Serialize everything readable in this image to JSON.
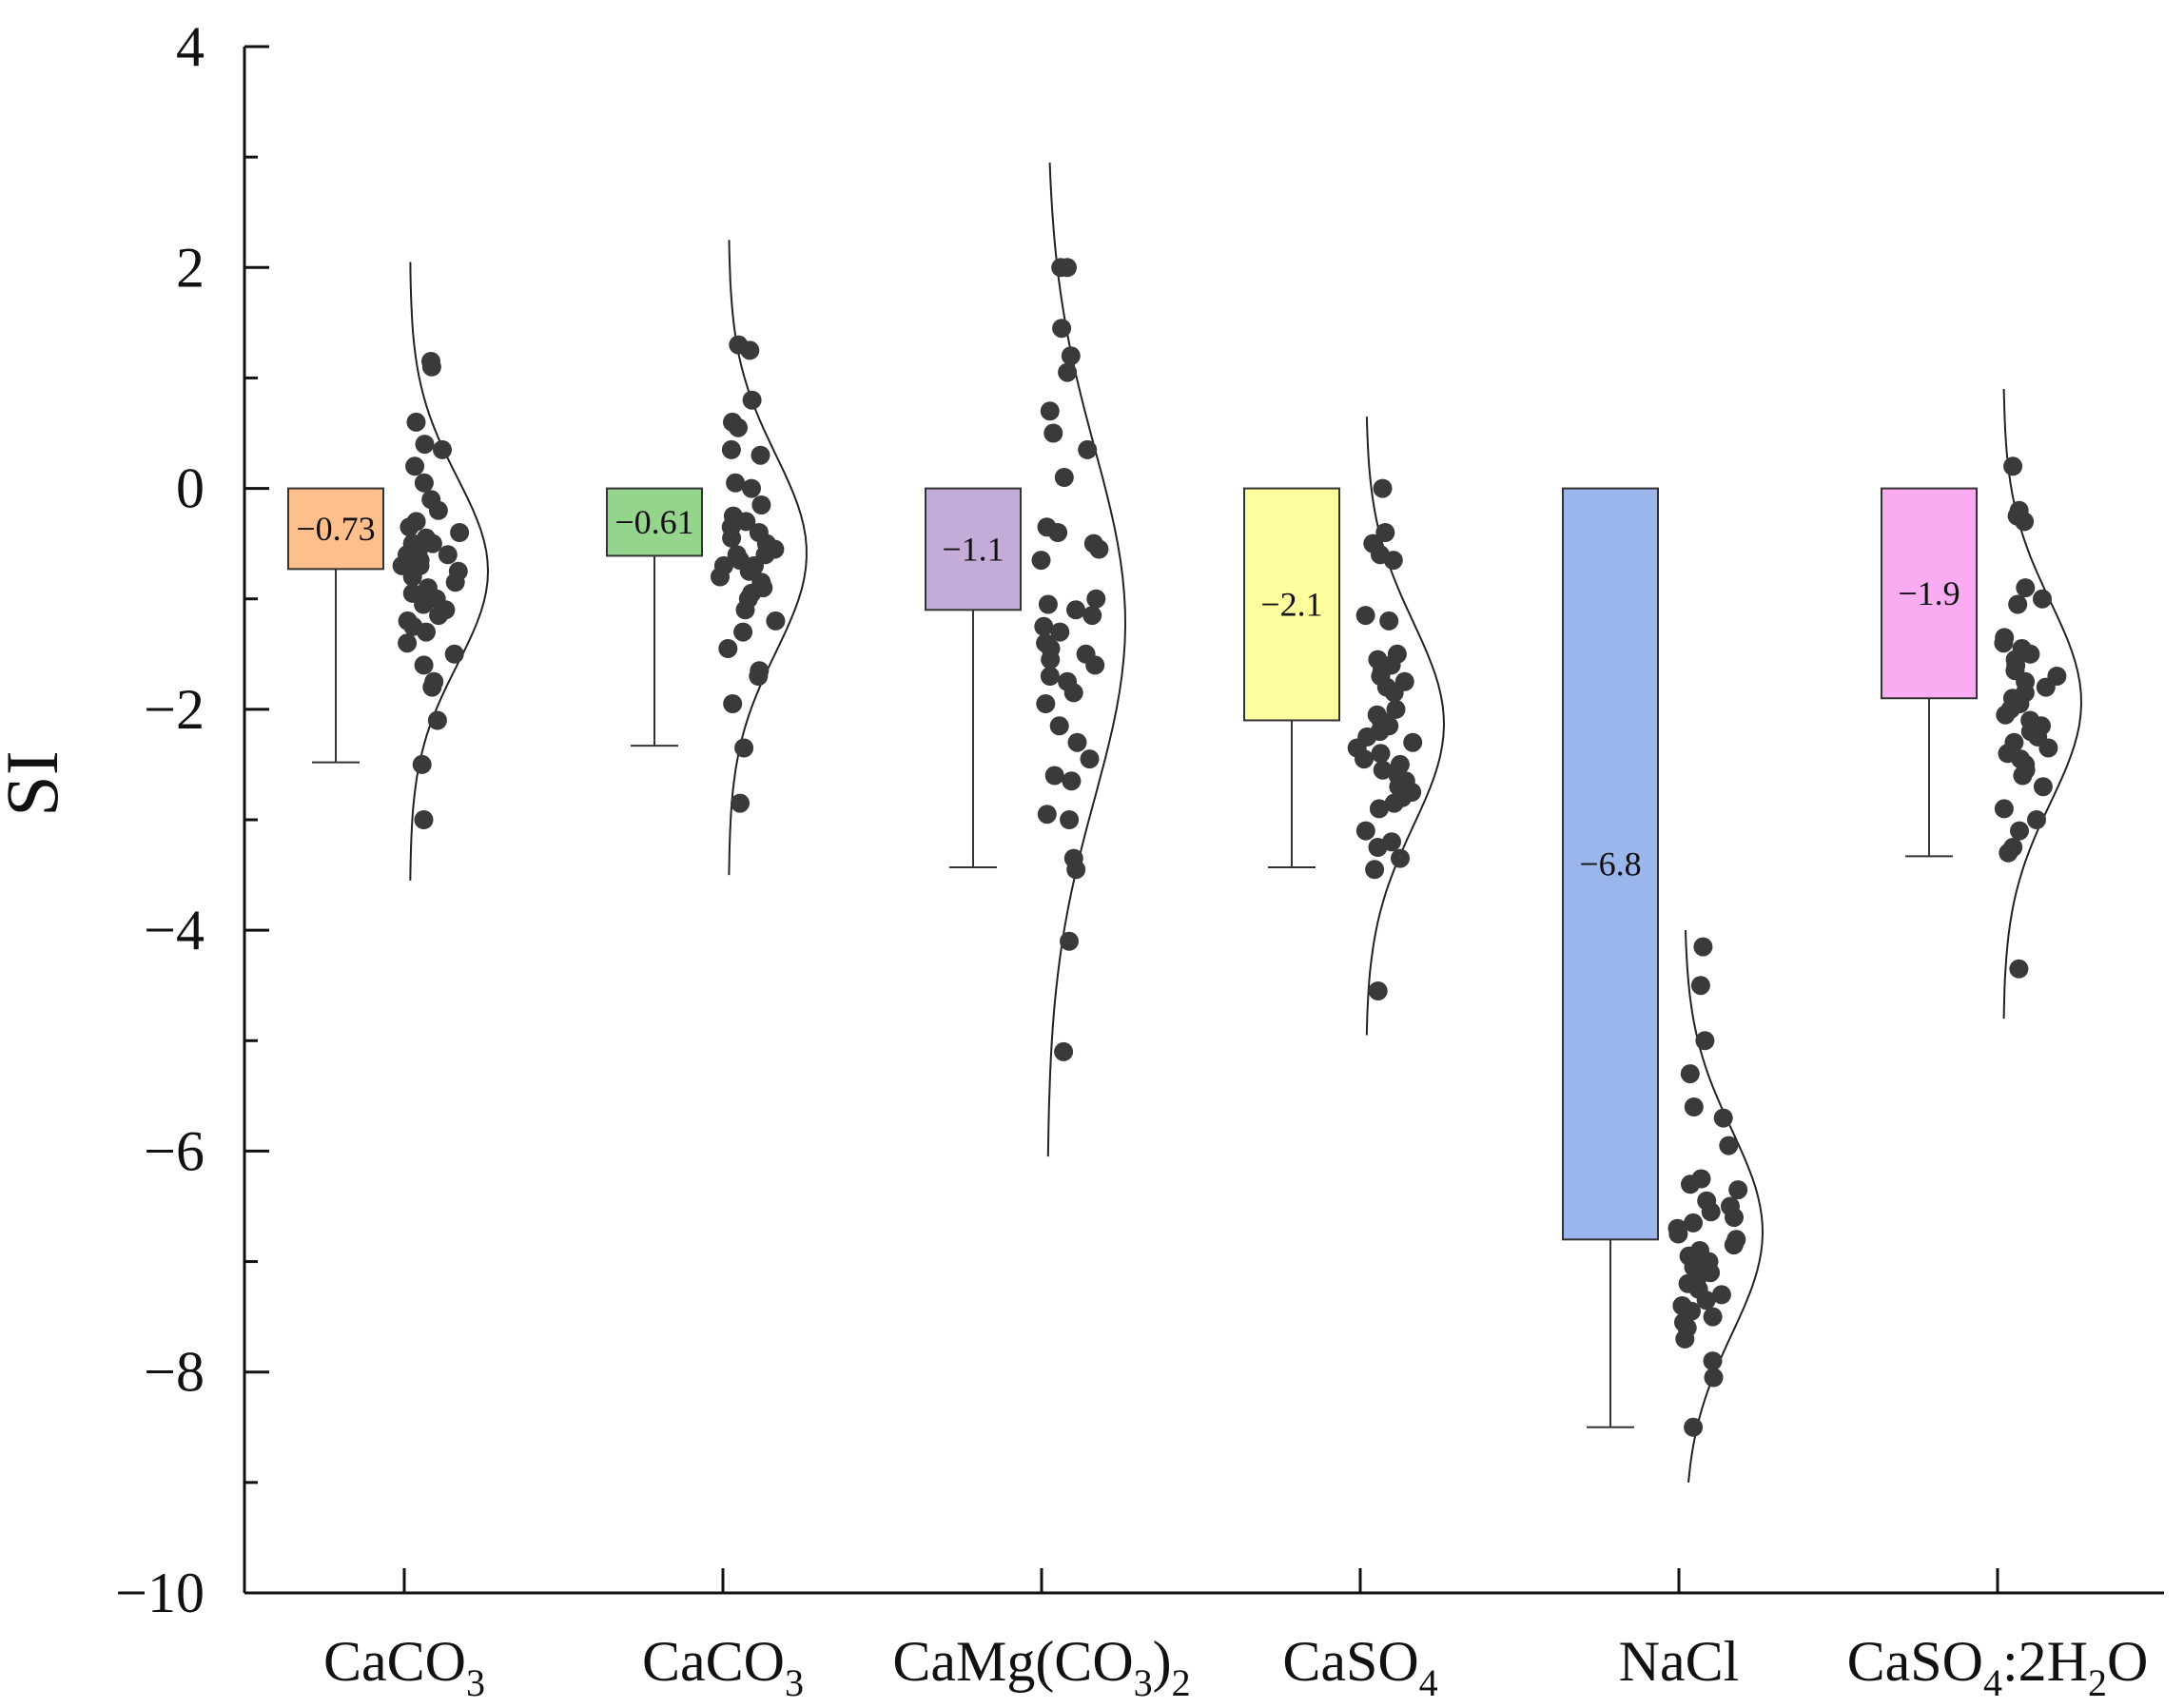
{
  "chart_data": {
    "type": "bar",
    "title": "",
    "xlabel": "",
    "ylabel": "SI",
    "ylim": [
      -10,
      4
    ],
    "yticks": [
      4,
      2,
      0,
      -2,
      -4,
      -6,
      -8,
      -10
    ],
    "ytick_labels": [
      "4",
      "2",
      "0",
      "−2",
      "−4",
      "−6",
      "−8",
      "−10"
    ],
    "grid": false,
    "legend": "none",
    "categories": [
      {
        "main": "CaCO",
        "sub": "3",
        "rest": "",
        "sub2": "",
        "tail": ""
      },
      {
        "main": "CaCO",
        "sub": "3",
        "rest": "",
        "sub2": "",
        "tail": ""
      },
      {
        "main": "CaMg(CO",
        "sub": "3",
        "rest": ")",
        "sub2": "2",
        "tail": ""
      },
      {
        "main": "CaSO",
        "sub": "4",
        "rest": "",
        "sub2": "",
        "tail": ""
      },
      {
        "main": "NaCl",
        "sub": "",
        "rest": "",
        "sub2": "",
        "tail": ""
      },
      {
        "main": "CaSO",
        "sub": "4",
        "rest": ":2H",
        "sub2": "2",
        "tail": "O"
      }
    ],
    "series": [
      {
        "name": "CaCO3",
        "mean": -0.73,
        "label": "−0.73",
        "whisker_low": -2.48,
        "color": "#fdc08c",
        "points": [
          1.15,
          1.1,
          0.6,
          0.4,
          0.35,
          0.2,
          0.05,
          -0.1,
          -0.2,
          -0.3,
          -0.35,
          -0.4,
          -0.45,
          -0.5,
          -0.5,
          -0.55,
          -0.6,
          -0.6,
          -0.65,
          -0.7,
          -0.7,
          -0.75,
          -0.8,
          -0.85,
          -0.9,
          -0.95,
          -1.0,
          -1.05,
          -1.1,
          -1.15,
          -1.2,
          -1.25,
          -1.3,
          -1.4,
          -1.5,
          -1.6,
          -1.75,
          -1.8,
          -2.1,
          -2.5,
          -3.0
        ],
        "curve_range": [
          -3.55,
          2.05
        ]
      },
      {
        "name": "CaCO3",
        "mean": -0.61,
        "label": "−0.61",
        "whisker_low": -2.33,
        "color": "#94d48c",
        "points": [
          1.3,
          1.25,
          0.8,
          0.6,
          0.55,
          0.35,
          0.3,
          0.05,
          0.0,
          -0.15,
          -0.25,
          -0.3,
          -0.35,
          -0.4,
          -0.45,
          -0.5,
          -0.55,
          -0.6,
          -0.6,
          -0.65,
          -0.7,
          -0.7,
          -0.75,
          -0.8,
          -0.85,
          -0.9,
          -0.95,
          -1.0,
          -1.1,
          -1.2,
          -1.3,
          -1.45,
          -1.65,
          -1.7,
          -1.95,
          -2.35,
          -2.85
        ],
        "curve_range": [
          -3.5,
          2.25
        ]
      },
      {
        "name": "CaMg(CO3)2",
        "mean": -1.1,
        "label": "−1.1",
        "whisker_low": -3.43,
        "color": "#c4acd8",
        "points": [
          2.0,
          2.0,
          1.45,
          1.2,
          1.05,
          0.7,
          0.5,
          0.35,
          0.1,
          -0.35,
          -0.4,
          -0.5,
          -0.55,
          -0.65,
          -1.0,
          -1.05,
          -1.1,
          -1.15,
          -1.25,
          -1.3,
          -1.4,
          -1.45,
          -1.5,
          -1.55,
          -1.6,
          -1.7,
          -1.75,
          -1.85,
          -1.95,
          -2.15,
          -2.3,
          -2.45,
          -2.6,
          -2.65,
          -2.95,
          -3.0,
          -3.35,
          -3.45,
          -4.1,
          -5.1
        ],
        "curve_range": [
          -6.05,
          2.95
        ]
      },
      {
        "name": "CaSO4",
        "mean": -2.1,
        "label": "−2.1",
        "whisker_low": -3.43,
        "color": "#fdfd9e",
        "points": [
          0.0,
          -0.4,
          -0.5,
          -0.6,
          -0.65,
          -1.15,
          -1.2,
          -1.5,
          -1.55,
          -1.6,
          -1.65,
          -1.7,
          -1.75,
          -1.8,
          -1.85,
          -2.0,
          -2.05,
          -2.1,
          -2.15,
          -2.2,
          -2.25,
          -2.3,
          -2.35,
          -2.4,
          -2.45,
          -2.5,
          -2.55,
          -2.6,
          -2.65,
          -2.7,
          -2.75,
          -2.8,
          -2.85,
          -2.9,
          -3.1,
          -3.2,
          -3.25,
          -3.35,
          -3.45,
          -4.55
        ],
        "curve_range": [
          -4.95,
          0.65
        ]
      },
      {
        "name": "NaCl",
        "mean": -6.8,
        "label": "−6.8",
        "whisker_low": -8.5,
        "color": "#9ab6ec",
        "points": [
          -4.15,
          -4.5,
          -5.0,
          -5.3,
          -5.6,
          -5.7,
          -5.95,
          -6.25,
          -6.3,
          -6.35,
          -6.45,
          -6.5,
          -6.55,
          -6.6,
          -6.65,
          -6.7,
          -6.75,
          -6.8,
          -6.85,
          -6.9,
          -6.95,
          -7.0,
          -7.05,
          -7.1,
          -7.15,
          -7.2,
          -7.25,
          -7.3,
          -7.35,
          -7.4,
          -7.45,
          -7.5,
          -7.55,
          -7.6,
          -7.7,
          -7.9,
          -8.05,
          -8.5
        ],
        "curve_range": [
          -9.0,
          -4.0
        ]
      },
      {
        "name": "CaSO4:2H2O",
        "mean": -1.9,
        "label": "−1.9",
        "whisker_low": -3.33,
        "color": "#f9acf1",
        "points": [
          0.2,
          -0.2,
          -0.25,
          -0.3,
          -0.9,
          -1.0,
          -1.05,
          -1.35,
          -1.4,
          -1.45,
          -1.5,
          -1.55,
          -1.6,
          -1.65,
          -1.7,
          -1.75,
          -1.8,
          -1.85,
          -1.9,
          -1.95,
          -2.0,
          -2.05,
          -2.1,
          -2.15,
          -2.2,
          -2.25,
          -2.3,
          -2.35,
          -2.4,
          -2.45,
          -2.5,
          -2.55,
          -2.6,
          -2.7,
          -2.9,
          -3.0,
          -3.1,
          -3.25,
          -3.3,
          -4.35
        ],
        "curve_range": [
          -4.8,
          0.9
        ]
      }
    ]
  }
}
